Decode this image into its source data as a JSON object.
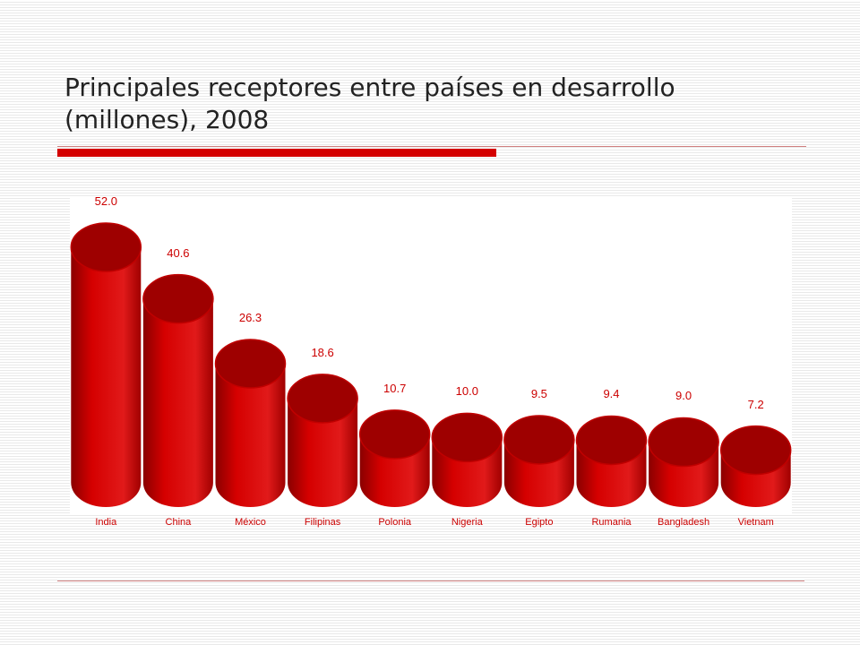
{
  "slide": {
    "title": "Principales receptores entre países en desarrollo (millones), 2008"
  },
  "colors": {
    "accent": "#d40000",
    "bar_body": "#d50000",
    "bar_top": "#9e0000",
    "label_text": "#cc0000"
  },
  "chart_data": {
    "type": "bar",
    "style": "3d-cylinder",
    "categories": [
      "India",
      "China",
      "México",
      "Filipinas",
      "Polonia",
      "Nigeria",
      "Egipto",
      "Rumania",
      "Bangladesh",
      "Vietnam"
    ],
    "values": [
      52.0,
      40.6,
      26.3,
      18.6,
      10.7,
      10.0,
      9.5,
      9.4,
      9.0,
      7.2
    ],
    "value_labels": [
      "52.0",
      "40.6",
      "26.3",
      "18.6",
      "10.7",
      "10.0",
      "9.5",
      "9.4",
      "9.0",
      "7.2"
    ],
    "title": "Principales receptores entre países en desarrollo (millones), 2008",
    "xlabel": "",
    "ylabel": "",
    "grid": false,
    "legend": false
  }
}
